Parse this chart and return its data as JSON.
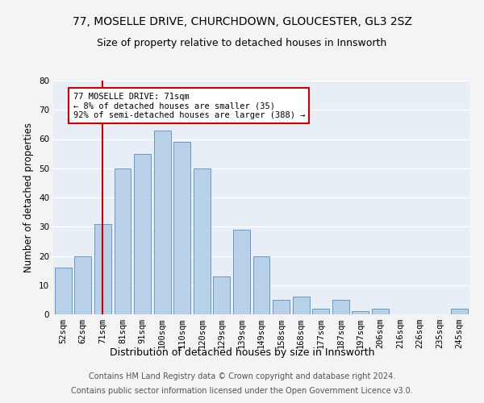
{
  "title1": "77, MOSELLE DRIVE, CHURCHDOWN, GLOUCESTER, GL3 2SZ",
  "title2": "Size of property relative to detached houses in Innsworth",
  "xlabel": "Distribution of detached houses by size in Innsworth",
  "ylabel": "Number of detached properties",
  "categories": [
    "52sqm",
    "62sqm",
    "71sqm",
    "81sqm",
    "91sqm",
    "100sqm",
    "110sqm",
    "120sqm",
    "129sqm",
    "139sqm",
    "149sqm",
    "158sqm",
    "168sqm",
    "177sqm",
    "187sqm",
    "197sqm",
    "206sqm",
    "216sqm",
    "226sqm",
    "235sqm",
    "245sqm"
  ],
  "values": [
    16,
    20,
    31,
    50,
    55,
    63,
    59,
    50,
    13,
    29,
    20,
    5,
    6,
    2,
    5,
    1,
    2,
    0,
    0,
    0,
    2
  ],
  "bar_color": "#b8d0e8",
  "bar_edge_color": "#6699cc",
  "vline_x_index": 2,
  "vline_color": "#cc0000",
  "ylim": [
    0,
    80
  ],
  "yticks": [
    0,
    10,
    20,
    30,
    40,
    50,
    60,
    70,
    80
  ],
  "annotation_text": "77 MOSELLE DRIVE: 71sqm\n← 8% of detached houses are smaller (35)\n92% of semi-detached houses are larger (388) →",
  "annotation_box_color": "#ffffff",
  "annotation_box_edge": "#cc0000",
  "footer1": "Contains HM Land Registry data © Crown copyright and database right 2024.",
  "footer2": "Contains public sector information licensed under the Open Government Licence v3.0.",
  "background_color": "#e8eef6",
  "fig_background": "#f4f4f4",
  "grid_color": "#ffffff",
  "title_fontsize": 10,
  "subtitle_fontsize": 9,
  "tick_fontsize": 7.5,
  "ylabel_fontsize": 8.5,
  "xlabel_fontsize": 9,
  "footer_fontsize": 7
}
